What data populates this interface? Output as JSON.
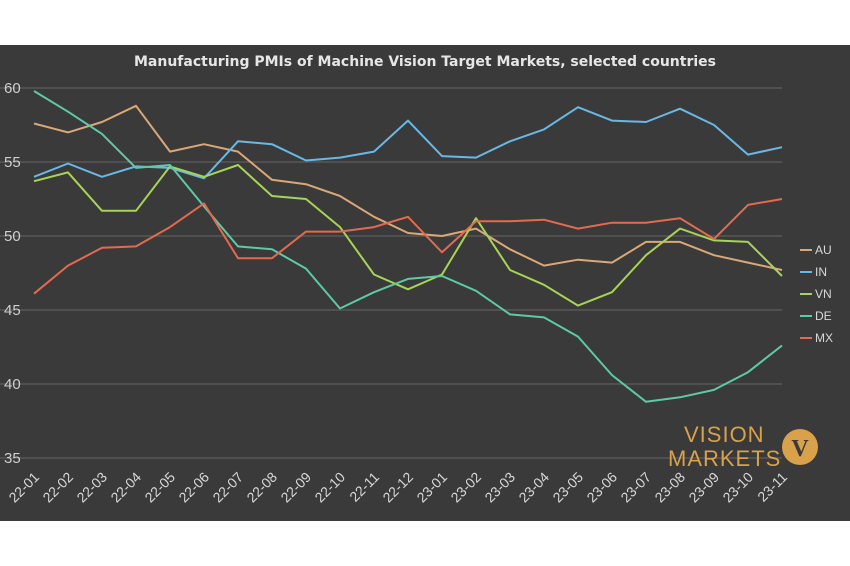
{
  "chart_data": {
    "type": "line",
    "title": "Manufacturing PMIs of Machine Vision Target Markets, selected  countries",
    "xlabel": "",
    "ylabel": "",
    "ylim": [
      35,
      60
    ],
    "yticks": [
      35,
      40,
      45,
      50,
      55,
      60
    ],
    "grid": true,
    "legend_position": "right",
    "categories": [
      "22-01",
      "22-02",
      "22-03",
      "22-04",
      "22-05",
      "22-06",
      "22-07",
      "22-08",
      "22-09",
      "22-10",
      "22-11",
      "22-12",
      "23-01",
      "23-02",
      "23-03",
      "23-04",
      "23-05",
      "23-06",
      "23-07",
      "23-08",
      "23-09",
      "23-10",
      "23-11"
    ],
    "series": [
      {
        "name": "AU",
        "color": "#d9a876",
        "values": [
          57.6,
          57.0,
          57.7,
          58.8,
          55.7,
          56.2,
          55.7,
          53.8,
          53.5,
          52.7,
          51.3,
          50.2,
          50.0,
          50.5,
          49.1,
          48.0,
          48.4,
          48.2,
          49.6,
          49.6,
          48.7,
          48.2,
          47.7
        ]
      },
      {
        "name": "IN",
        "color": "#69b8e6",
        "values": [
          54.0,
          54.9,
          54.0,
          54.7,
          54.6,
          53.9,
          56.4,
          56.2,
          55.1,
          55.3,
          55.7,
          57.8,
          55.4,
          55.3,
          56.4,
          57.2,
          58.7,
          57.8,
          57.7,
          58.6,
          57.5,
          55.5,
          56.0
        ]
      },
      {
        "name": "VN",
        "color": "#a6d455",
        "values": [
          53.7,
          54.3,
          51.7,
          51.7,
          54.7,
          54.0,
          54.8,
          52.7,
          52.5,
          50.6,
          47.4,
          46.4,
          47.4,
          51.2,
          47.7,
          46.7,
          45.3,
          46.2,
          48.7,
          50.5,
          49.7,
          49.6,
          47.3
        ]
      },
      {
        "name": "DE",
        "color": "#5dcaa6",
        "values": [
          59.8,
          58.4,
          56.9,
          54.6,
          54.8,
          52.0,
          49.3,
          49.1,
          47.8,
          45.1,
          46.2,
          47.1,
          47.3,
          46.3,
          44.7,
          44.5,
          43.2,
          40.6,
          38.8,
          39.1,
          39.6,
          40.8,
          42.6
        ]
      },
      {
        "name": "MX",
        "color": "#e36a4e",
        "values": [
          46.1,
          48.0,
          49.2,
          49.3,
          50.6,
          52.2,
          48.5,
          48.5,
          50.3,
          50.3,
          50.6,
          51.3,
          48.9,
          51.0,
          51.0,
          51.1,
          50.5,
          50.9,
          50.9,
          51.2,
          49.8,
          52.1,
          52.5
        ]
      }
    ]
  },
  "logo": {
    "line1": "VISION",
    "line2": "MARKETS",
    "emblem": "V",
    "color": "#d9a14a"
  }
}
